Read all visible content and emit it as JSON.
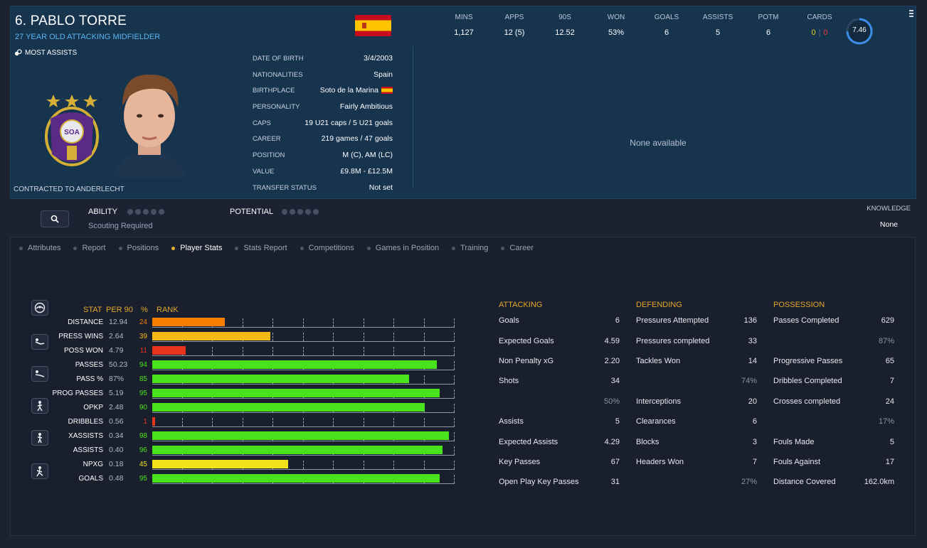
{
  "player": {
    "name": "6. PABLO TORRE",
    "subtitle": "27 YEAR OLD ATTACKING MIDFIELDER",
    "award": "MOST ASSISTS",
    "contract": "CONTRACTED TO ANDERLECHT"
  },
  "info": [
    {
      "label": "DATE OF BIRTH",
      "value": "3/4/2003"
    },
    {
      "label": "NATIONALITIES",
      "value": "Spain"
    },
    {
      "label": "BIRTHPLACE",
      "value": "Soto de la Marina",
      "flag": true
    },
    {
      "label": "PERSONALITY",
      "value": "Fairly Ambitious"
    },
    {
      "label": "CAPS",
      "value": "19 U21 caps / 5 U21 goals"
    },
    {
      "label": "CAREER",
      "value": "219 games /  47  goals"
    },
    {
      "label": "POSITION",
      "value": "M (C), AM (LC)"
    },
    {
      "label": "VALUE",
      "value": "£9.8M - £12.5M"
    },
    {
      "label": "TRANSFER STATUS",
      "value": "Not set"
    }
  ],
  "season_stats": [
    {
      "label": "MINS",
      "value": "1,127"
    },
    {
      "label": "APPS",
      "value": "12 (5)"
    },
    {
      "label": "90S",
      "value": "12.52"
    },
    {
      "label": "WON",
      "value": "53%"
    },
    {
      "label": "GOALS",
      "value": "6"
    },
    {
      "label": "ASSISTS",
      "value": "5"
    },
    {
      "label": "POTM",
      "value": "6"
    }
  ],
  "cards": {
    "label": "CARDS",
    "yellow": "0",
    "sep": "|",
    "red": "0",
    "yellow_color": "#e8d21e",
    "red_color": "#e83b3b"
  },
  "rating": {
    "value": "7.46",
    "ring_fraction": 0.746,
    "color": "#3d8ee8"
  },
  "none_available": "None available",
  "ability": {
    "label": "ABILITY",
    "sub": "Scouting Required",
    "potential": "POTENTIAL"
  },
  "knowledge": {
    "label": "KNOWLEDGE",
    "value": "None"
  },
  "tabs": [
    {
      "label": "Attributes",
      "active": false
    },
    {
      "label": "Report",
      "active": false
    },
    {
      "label": "Positions",
      "active": false
    },
    {
      "label": "Player Stats",
      "active": true
    },
    {
      "label": "Stats Report",
      "active": false
    },
    {
      "label": "Competitions",
      "active": false
    },
    {
      "label": "Games in Position",
      "active": false
    },
    {
      "label": "Training",
      "active": false
    },
    {
      "label": "Career",
      "active": false
    }
  ],
  "chart_data": {
    "type": "bar",
    "headers": {
      "stat": "STAT",
      "per90": "PER 90",
      "pct": "%",
      "rank": "RANK"
    },
    "xlim": [
      0,
      100
    ],
    "categories": [
      "DISTANCE",
      "PRESS WINS",
      "POSS WON",
      "PASSES",
      "PASS %",
      "PROG PASSES",
      "OPKP",
      "DRIBBLES",
      "XASSISTS",
      "ASSISTS",
      "NPXG",
      "GOALS"
    ],
    "per90": [
      "12.94",
      "2.64",
      "4.79",
      "50.23",
      "87%",
      "5.19",
      "2.48",
      "0.56",
      "0.34",
      "0.40",
      "0.18",
      "0.48"
    ],
    "values": [
      24,
      39,
      11,
      94,
      85,
      95,
      90,
      1,
      98,
      96,
      45,
      95
    ],
    "colors": {
      "low": "#e8341c",
      "mid_low": "#f77f00",
      "mid": "#f4b915",
      "mid_high": "#f1e21a",
      "high": "#49e31b"
    }
  },
  "attacking": {
    "title": "ATTACKING",
    "rows": [
      {
        "label": "Goals",
        "value": "6"
      },
      {
        "label": "Expected Goals",
        "value": "4.59"
      },
      {
        "label": "Non Penalty xG",
        "value": "2.20"
      },
      {
        "label": "Shots",
        "value": "34"
      },
      {
        "label": "",
        "value": "50%",
        "dim": true
      },
      {
        "label": "Assists",
        "value": "5"
      },
      {
        "label": "Expected Assists",
        "value": "4.29"
      },
      {
        "label": "Key Passes",
        "value": "67"
      },
      {
        "label": "Open Play Key Passes",
        "value": "31"
      }
    ]
  },
  "defending": {
    "title": "DEFENDING",
    "rows": [
      {
        "label": "Pressures Attempted",
        "value": "136"
      },
      {
        "label": "Pressures completed",
        "value": "33"
      },
      {
        "label": "Tackles Won",
        "value": "14"
      },
      {
        "label": "",
        "value": "74%",
        "dim": true
      },
      {
        "label": "Interceptions",
        "value": "20"
      },
      {
        "label": "Clearances",
        "value": "6"
      },
      {
        "label": "Blocks",
        "value": "3"
      },
      {
        "label": "Headers Won",
        "value": "7"
      },
      {
        "label": "",
        "value": "27%",
        "dim": true
      }
    ]
  },
  "possession": {
    "title": "POSSESSION",
    "rows": [
      {
        "label": "Passes Completed",
        "value": "629"
      },
      {
        "label": "",
        "value": "87%",
        "dim": true
      },
      {
        "label": "Progressive Passes",
        "value": "65"
      },
      {
        "label": "Dribbles Completed",
        "value": "7"
      },
      {
        "label": "Crosses completed",
        "value": "24"
      },
      {
        "label": "",
        "value": "17%",
        "dim": true
      },
      {
        "label": "Fouls Made",
        "value": "5"
      },
      {
        "label": "Fouls Against",
        "value": "17"
      },
      {
        "label": "Distance Covered",
        "value": "162.0km"
      }
    ]
  },
  "icons": [
    "football-icon",
    "press-icon",
    "tackle-icon",
    "runner-icon",
    "walker-icon",
    "striker-icon",
    "search-icon",
    "kebab-icon",
    "trophy-icon"
  ]
}
